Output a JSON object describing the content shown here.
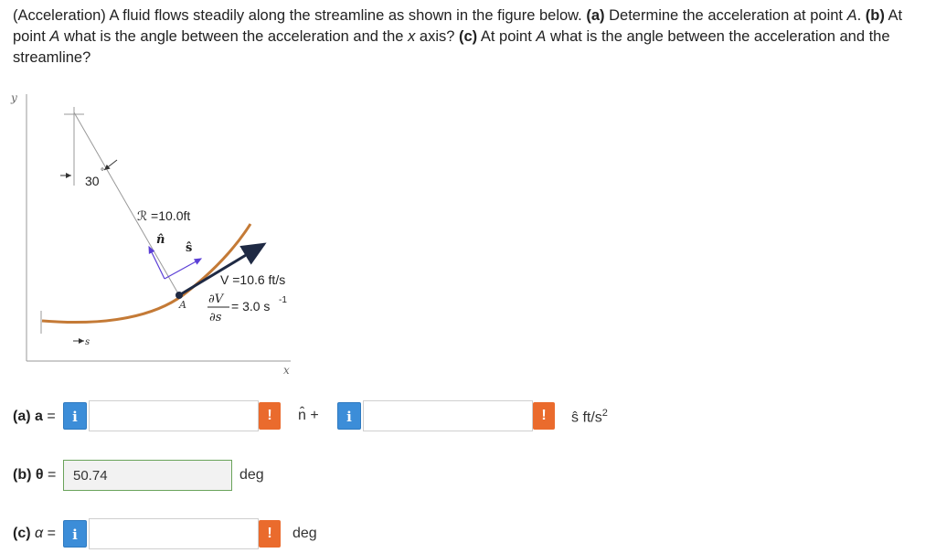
{
  "question": {
    "p1": "(Acceleration) A fluid flows steadily along the streamline as shown in the figure below. ",
    "a_label": "(a)",
    "p2": " Determine the acceleration at point ",
    "A1": "A",
    "p3": ". ",
    "b_label": "(b)",
    "p4": " At point ",
    "A2": "A",
    "p5": " what is the angle between the acceleration and the ",
    "x_var": "x",
    "p6": " axis? ",
    "c_label": "(c)",
    "p7": " At point ",
    "A3": "A",
    "p8": " what is the angle between the acceleration and the streamline?"
  },
  "figure": {
    "y_axis_label": "y",
    "x_axis_label": "x",
    "angle_label": "30",
    "degree_mark": "°",
    "radius_label": "ℛ =10.0ft",
    "n_hat": "n̂",
    "s_hat": "ŝ",
    "point_label": "A",
    "velocity_label": "V =10.6 ft/s",
    "dv_num": "∂V",
    "dv_den": "∂s",
    "dv_value": "= 3.0 s",
    "dv_exp": "-1",
    "s_label": "s"
  },
  "answers": {
    "a": {
      "label_bold": "(a) a",
      "label_eq": " =",
      "info": "i",
      "input1_value": "",
      "warn1": "!",
      "n_hat_plus": "n̂  +",
      "input2_value": "",
      "warn2": "!",
      "units": "ŝ  ft/s",
      "units_exp": "2"
    },
    "b": {
      "label_bold": "(b) θ",
      "label_eq": " =",
      "value": "50.74",
      "unit": "deg"
    },
    "c": {
      "label_bold": "(c) ",
      "label_alpha": "α",
      "label_eq": " =",
      "info": "i",
      "input_value": "",
      "warn": "!",
      "unit": "deg"
    }
  },
  "colors": {
    "info_blue": "#3c8dd8",
    "warn_orange": "#ea6b2d",
    "streamline_brown": "#c47a36",
    "accepted_green": "#6aa35b"
  }
}
